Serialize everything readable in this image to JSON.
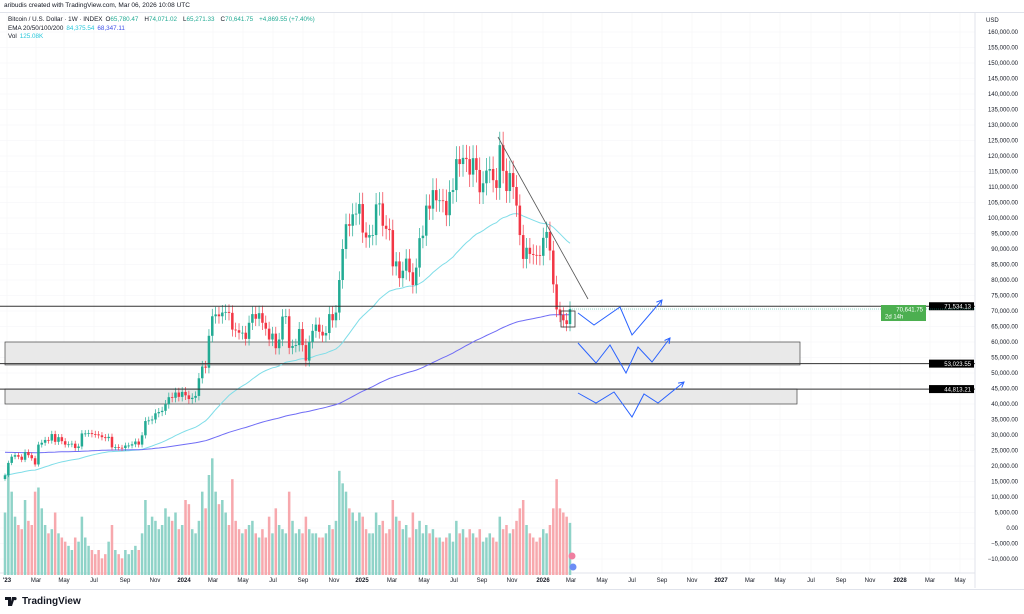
{
  "credit": "aribudis created with TradingView.com, Mar 06, 2026 10:08 UTC",
  "legend": {
    "symbol": "Bitcoin / U.S. Dollar · 1W · INDEX",
    "open_label": "O",
    "open": "65,780.47",
    "high_label": "H",
    "high": "74,071.02",
    "low_label": "L",
    "low": "65,271.33",
    "close_label": "C",
    "close": "70,641.75",
    "change": "+4,869.55 (+7.40%)",
    "ema_label": "EMA 20/50/100/200",
    "ema_a": "84,375.54",
    "ema_b": "68,347.11",
    "vol_label": "Vol",
    "vol": "125.08K"
  },
  "footer": {
    "brand": "TradingView",
    "logo_icon": "tradingview-logo"
  },
  "colors": {
    "up": "#22ab94",
    "down": "#f23645",
    "vol_up": "#8fd3c8",
    "vol_down": "#f7a8ad",
    "ema_a": "#7fdde8",
    "ema_b": "#6f6cf5",
    "projection": "#2962ff",
    "zone": "#e9e9e9"
  },
  "chart_data": {
    "type": "candlestick",
    "interval": "1W",
    "x_start": "2023-01-02",
    "y_axis": {
      "unit": "USD",
      "range": [
        -10000,
        160000
      ],
      "ticks": [
        "160,000.00",
        "155,000.00",
        "150,000.00",
        "145,000.00",
        "140,000.00",
        "135,000.00",
        "130,000.00",
        "125,000.00",
        "120,000.00",
        "115,000.00",
        "110,000.00",
        "105,000.00",
        "100,000.00",
        "95,000.00",
        "90,000.00",
        "85,000.00",
        "80,000.00",
        "75,000.00",
        "70,000.00",
        "65,000.00",
        "60,000.00",
        "55,000.00",
        "50,000.00",
        "45,000.00",
        "40,000.00",
        "35,000.00",
        "30,000.00",
        "25,000.00",
        "20,000.00",
        "15,000.00",
        "10,000.00",
        "5,000.00",
        "0.00",
        "−5,000.00",
        "−10,000.00"
      ]
    },
    "x_ticks": [
      "'23",
      "Mar",
      "May",
      "Jul",
      "Sep",
      "Nov",
      "2024",
      "Mar",
      "May",
      "Jul",
      "Sep",
      "Nov",
      "2025",
      "Mar",
      "May",
      "Jul",
      "Sep",
      "Nov",
      "2026",
      "Mar",
      "May",
      "Jul",
      "Sep",
      "Nov",
      "2027",
      "Mar",
      "May",
      "Jul",
      "Sep",
      "Nov",
      "2028",
      "Mar",
      "May"
    ],
    "closes": [
      17000,
      21000,
      23000,
      23500,
      23000,
      22000,
      24500,
      23500,
      22500,
      20500,
      26900,
      27500,
      28400,
      28200,
      30300,
      27800,
      29300,
      28000,
      26900,
      27000,
      27200,
      25800,
      26300,
      30500,
      30500,
      30600,
      30300,
      30200,
      29900,
      29300,
      29000,
      29400,
      26000,
      26100,
      25900,
      25800,
      26600,
      26600,
      27000,
      27900,
      26900,
      29900,
      34500,
      34700,
      35000,
      37000,
      37400,
      37800,
      39900,
      42200,
      42000,
      43700,
      42300,
      43900,
      42800,
      41600,
      42000,
      42600,
      48300,
      52100,
      51700,
      62000,
      68300,
      68900,
      68300,
      69500,
      69700,
      69400,
      64000,
      63800,
      63000,
      63000,
      61000,
      66200,
      69000,
      67500,
      69300,
      66200,
      64300,
      60800,
      62700,
      58000,
      60800,
      68200,
      68300,
      58100,
      58700,
      59000,
      64200,
      59000,
      54000,
      60000,
      63600,
      65600,
      63300,
      62100,
      62900,
      69000,
      67000,
      69500,
      80000,
      90000,
      98000,
      97500,
      101200,
      101400,
      104500,
      95300,
      93700,
      94500,
      94500,
      104400,
      104700,
      97500,
      96500,
      96100,
      84400,
      86000,
      80600,
      83000,
      86900,
      82500,
      78400,
      84000,
      93500,
      94300,
      104000,
      103000,
      109000,
      105700,
      105700,
      105500,
      100900,
      108400,
      109000,
      119000,
      117400,
      119400,
      119000,
      114000,
      119300,
      115500,
      108300,
      111200,
      115300,
      115800,
      112200,
      109700,
      123500,
      115200,
      108700,
      114500,
      110000,
      104000,
      94500,
      86800,
      90400,
      88400,
      88100,
      88000,
      87800,
      93600,
      95500,
      89500,
      78600,
      70500,
      68800,
      67000,
      65780,
      70641.75
    ],
    "volume_k": [
      150,
      260,
      200,
      140,
      120,
      110,
      180,
      130,
      120,
      200,
      210,
      160,
      120,
      100,
      110,
      150,
      100,
      90,
      80,
      70,
      60,
      90,
      80,
      140,
      90,
      70,
      60,
      50,
      60,
      40,
      50,
      80,
      120,
      60,
      50,
      40,
      60,
      50,
      60,
      70,
      60,
      100,
      180,
      120,
      140,
      130,
      110,
      120,
      160,
      140,
      130,
      150,
      110,
      120,
      180,
      170,
      110,
      100,
      130,
      200,
      160,
      240,
      280,
      200,
      170,
      180,
      150,
      120,
      230,
      130,
      110,
      100,
      110,
      120,
      130,
      100,
      90,
      110,
      90,
      140,
      100,
      160,
      120,
      110,
      100,
      200,
      130,
      100,
      110,
      100,
      140,
      110,
      100,
      100,
      90,
      90,
      100,
      120,
      110,
      130,
      250,
      220,
      200,
      160,
      150,
      130,
      150,
      140,
      110,
      100,
      100,
      150,
      120,
      130,
      100,
      110,
      180,
      140,
      130,
      110,
      120,
      90,
      150,
      110,
      130,
      100,
      120,
      100,
      110,
      90,
      90,
      80,
      90,
      100,
      80,
      130,
      100,
      110,
      90,
      110,
      100,
      90,
      110,
      80,
      90,
      100,
      90,
      80,
      140,
      110,
      120,
      100,
      110,
      130,
      160,
      180,
      120,
      100,
      90,
      80,
      90,
      110,
      100,
      120,
      160,
      230,
      160,
      150,
      140,
      125.08
    ],
    "price_lines": [
      {
        "label": "71,534.13",
        "value": 71534.13
      },
      {
        "label": "53,023.55",
        "value": 53023.55
      },
      {
        "label": "44,813.21",
        "value": 44813.21
      }
    ],
    "last_price": {
      "label": "70,641.75",
      "countdown": "2d 14h"
    },
    "zones": [
      {
        "from": 52600,
        "to": 60000
      },
      {
        "from": 40000,
        "to": 44813.21
      }
    ]
  }
}
